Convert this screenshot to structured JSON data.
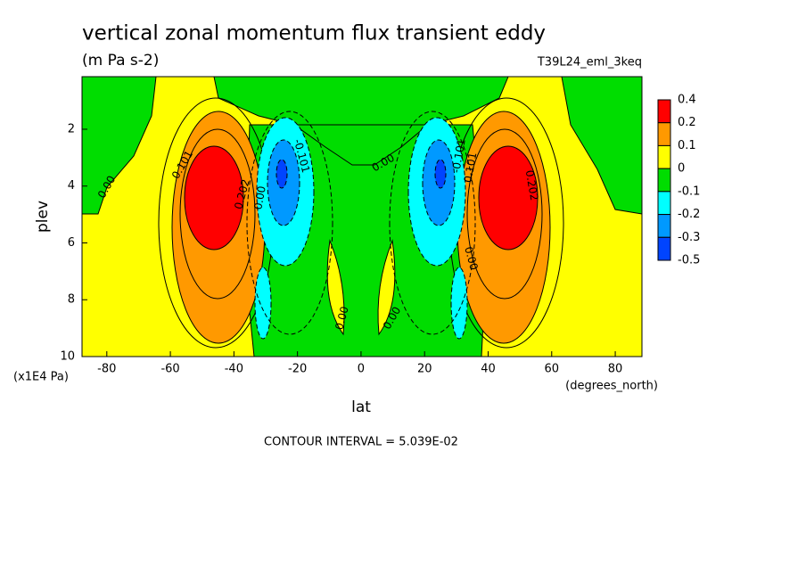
{
  "chart_data": {
    "type": "contour",
    "title": "vertical zonal momentum flux transient eddy",
    "subtitle": "(m Pa s-2)",
    "dataset": "T39L24_eml_3keq",
    "x_label": "lat",
    "x_units": "(degrees_north)",
    "y_label": "plev",
    "y_units": "(x1E4 Pa)",
    "xlim": [
      -87.8,
      88.4
    ],
    "xticks": [
      -80,
      -60,
      -40,
      -20,
      0,
      20,
      40,
      60,
      80
    ],
    "ylim": [
      0.15,
      10
    ],
    "yticks": [
      2,
      4,
      6,
      8,
      10
    ],
    "y_inverted": true,
    "levels": [
      0.4,
      0.2,
      0.1,
      0,
      -0.1,
      -0.2,
      -0.3,
      -0.5
    ],
    "level_colors": [
      "#ff0000",
      "#ff9900",
      "#ffff00",
      "#00dd00",
      "#00ffff",
      "#0099ff",
      "#0044ff"
    ],
    "contour_labels": [
      "0.101",
      "0.202",
      "0.00",
      "-0.101",
      "0.00",
      "0.101",
      "0.202",
      "-0.101",
      "0.00",
      "0.00",
      "0.00",
      "0.00"
    ],
    "footnote": "CONTOUR INTERVAL = 5.039E-02"
  }
}
